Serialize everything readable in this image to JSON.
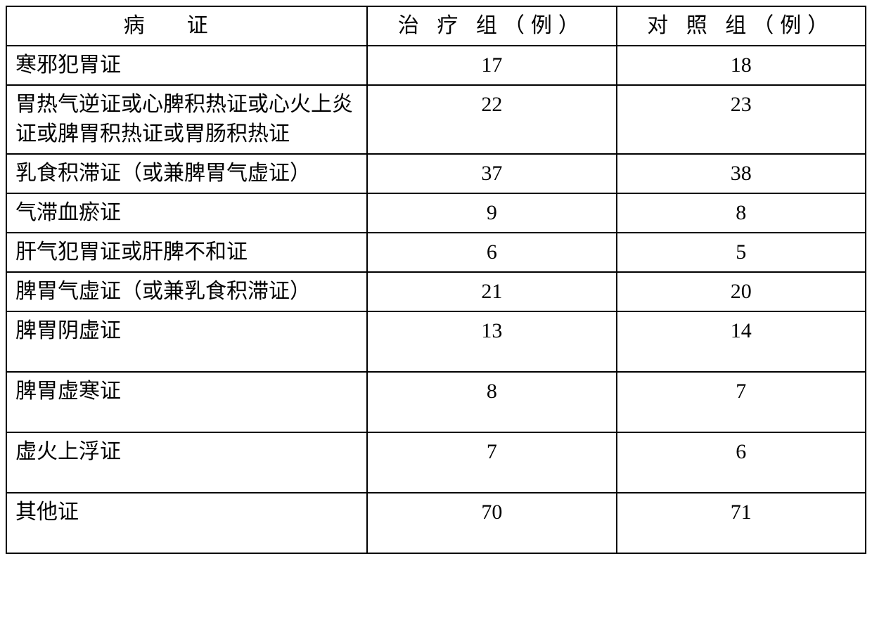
{
  "table": {
    "headers": {
      "syndrome": "病证",
      "treatment": "治 疗 组（例）",
      "control": "对 照 组（例）"
    },
    "rows": [
      {
        "syndrome": "寒邪犯胃证",
        "treatment": "17",
        "control": "18",
        "tall": false
      },
      {
        "syndrome": "胃热气逆证或心脾积热证或心火上炎证或脾胃积热证或胃肠积热证",
        "treatment": "22",
        "control": "23",
        "tall": false
      },
      {
        "syndrome": "乳食积滞证（或兼脾胃气虚证）",
        "treatment": "37",
        "control": "38",
        "tall": false
      },
      {
        "syndrome": "气滞血瘀证",
        "treatment": "9",
        "control": "8",
        "tall": false
      },
      {
        "syndrome": "肝气犯胃证或肝脾不和证",
        "treatment": "6",
        "control": "5",
        "tall": false
      },
      {
        "syndrome": "脾胃气虚证（或兼乳食积滞证）",
        "treatment": "21",
        "control": "20",
        "tall": false
      },
      {
        "syndrome": "脾胃阴虚证",
        "treatment": "13",
        "control": "14",
        "tall": true
      },
      {
        "syndrome": "脾胃虚寒证",
        "treatment": "8",
        "control": "7",
        "tall": true
      },
      {
        "syndrome": "虚火上浮证",
        "treatment": "7",
        "control": "6",
        "tall": true
      },
      {
        "syndrome": "其他证",
        "treatment": "70",
        "control": "71",
        "tall": true
      }
    ],
    "styling": {
      "border_color": "#000000",
      "border_width": 2,
      "background_color": "#ffffff",
      "font_family": "SimSun",
      "cell_fontsize": 30,
      "header_syndrome_letter_spacing": "2em",
      "header_group_letter_spacing": "0.3em",
      "col_widths": [
        "42%",
        "29%",
        "29%"
      ],
      "syndrome_align": "left",
      "data_align": "center"
    }
  }
}
